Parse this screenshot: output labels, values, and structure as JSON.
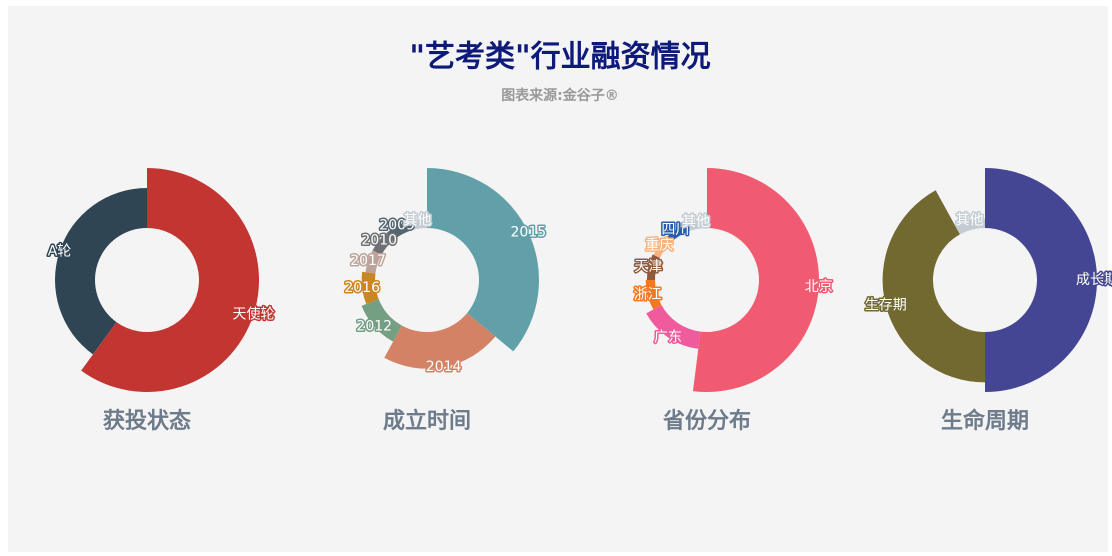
{
  "header": {
    "title": "\"艺考类\"行业融资情况",
    "subtitle": "图表来源:金谷子®"
  },
  "chart_data": [
    {
      "type": "pie",
      "title": "获投状态",
      "categories": [
        "天使轮",
        "A轮"
      ],
      "values": [
        60,
        40
      ],
      "colors": [
        "#c23531",
        "#2f4554"
      ]
    },
    {
      "type": "pie",
      "title": "成立时间",
      "categories": [
        "2015",
        "2014",
        "2012",
        "2016",
        "2017",
        "2010",
        "2009",
        "其他"
      ],
      "values": [
        36,
        22,
        11,
        8,
        6,
        6,
        6,
        5
      ],
      "colors": [
        "#61a0a8",
        "#d48265",
        "#749f83",
        "#ca8622",
        "#bda29a",
        "#6e7074",
        "#546570",
        "#c4ccd3"
      ]
    },
    {
      "type": "pie",
      "title": "省份分布",
      "categories": [
        "北京",
        "广东",
        "浙江",
        "天津",
        "重庆",
        "四川",
        "其他"
      ],
      "values": [
        52,
        15,
        8,
        7,
        6,
        6,
        6
      ],
      "colors": [
        "#f05b72",
        "#ef5b9c",
        "#f47920",
        "#905a3d",
        "#fab27b",
        "#2a5caa",
        "#c4ccd3"
      ]
    },
    {
      "type": "pie",
      "title": "生命周期",
      "categories": [
        "成长期",
        "生存期",
        "其他"
      ],
      "values": [
        50,
        42,
        8
      ],
      "colors": [
        "#444693",
        "#726930",
        "#c4ccd3"
      ]
    }
  ]
}
